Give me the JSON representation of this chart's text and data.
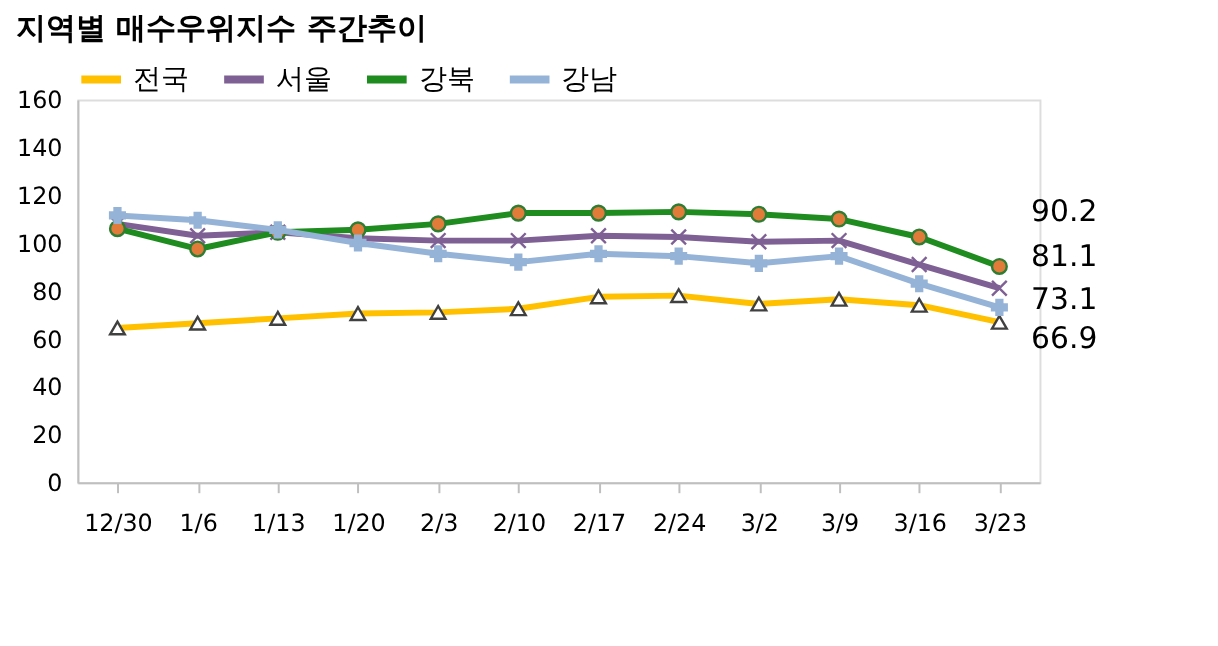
{
  "chart_data": {
    "type": "line",
    "title": "지역별 매수우위지수 주간추이",
    "categories": [
      "12/30",
      "1/6",
      "1/13",
      "1/20",
      "2/3",
      "2/10",
      "2/17",
      "2/24",
      "3/2",
      "3/9",
      "3/16",
      "3/23"
    ],
    "series": [
      {
        "name": "전국",
        "color": "#ffc000",
        "marker": "triangle",
        "values": [
          64.5,
          66.5,
          68.5,
          70.5,
          71,
          72.5,
          77.5,
          78,
          74.5,
          76.5,
          74,
          66.9
        ],
        "value_labels": [
          null,
          null,
          null,
          null,
          null,
          null,
          null,
          null,
          null,
          null,
          null,
          "66.9"
        ]
      },
      {
        "name": "서울",
        "color": "#7f6094",
        "marker": "cross",
        "values": [
          108,
          103,
          104.5,
          102,
          101,
          101,
          103,
          102.5,
          100.5,
          101,
          91,
          81.1
        ],
        "value_labels": [
          null,
          null,
          null,
          null,
          null,
          null,
          null,
          null,
          null,
          null,
          null,
          "81.1"
        ]
      },
      {
        "name": "강북",
        "color": "#1e8c1e",
        "marker": "circle",
        "values": [
          106,
          97.5,
          104.5,
          105.5,
          108,
          112.5,
          112.5,
          113,
          112,
          110,
          102.5,
          90.2
        ],
        "value_labels": [
          null,
          null,
          null,
          null,
          null,
          null,
          null,
          null,
          null,
          null,
          null,
          "90.2"
        ]
      },
      {
        "name": "강남",
        "color": "#95b3d7",
        "marker": "plus",
        "values": [
          111.5,
          109.5,
          105.5,
          100,
          95.5,
          92,
          95.5,
          94.5,
          91.5,
          94.5,
          83,
          73.1
        ],
        "value_labels": [
          null,
          null,
          null,
          null,
          null,
          null,
          null,
          null,
          null,
          null,
          null,
          "73.1"
        ]
      }
    ],
    "ylim": [
      0,
      160
    ],
    "yticks": [
      0,
      20,
      40,
      60,
      80,
      100,
      120,
      140,
      160
    ],
    "grid": false,
    "legend": "top"
  }
}
